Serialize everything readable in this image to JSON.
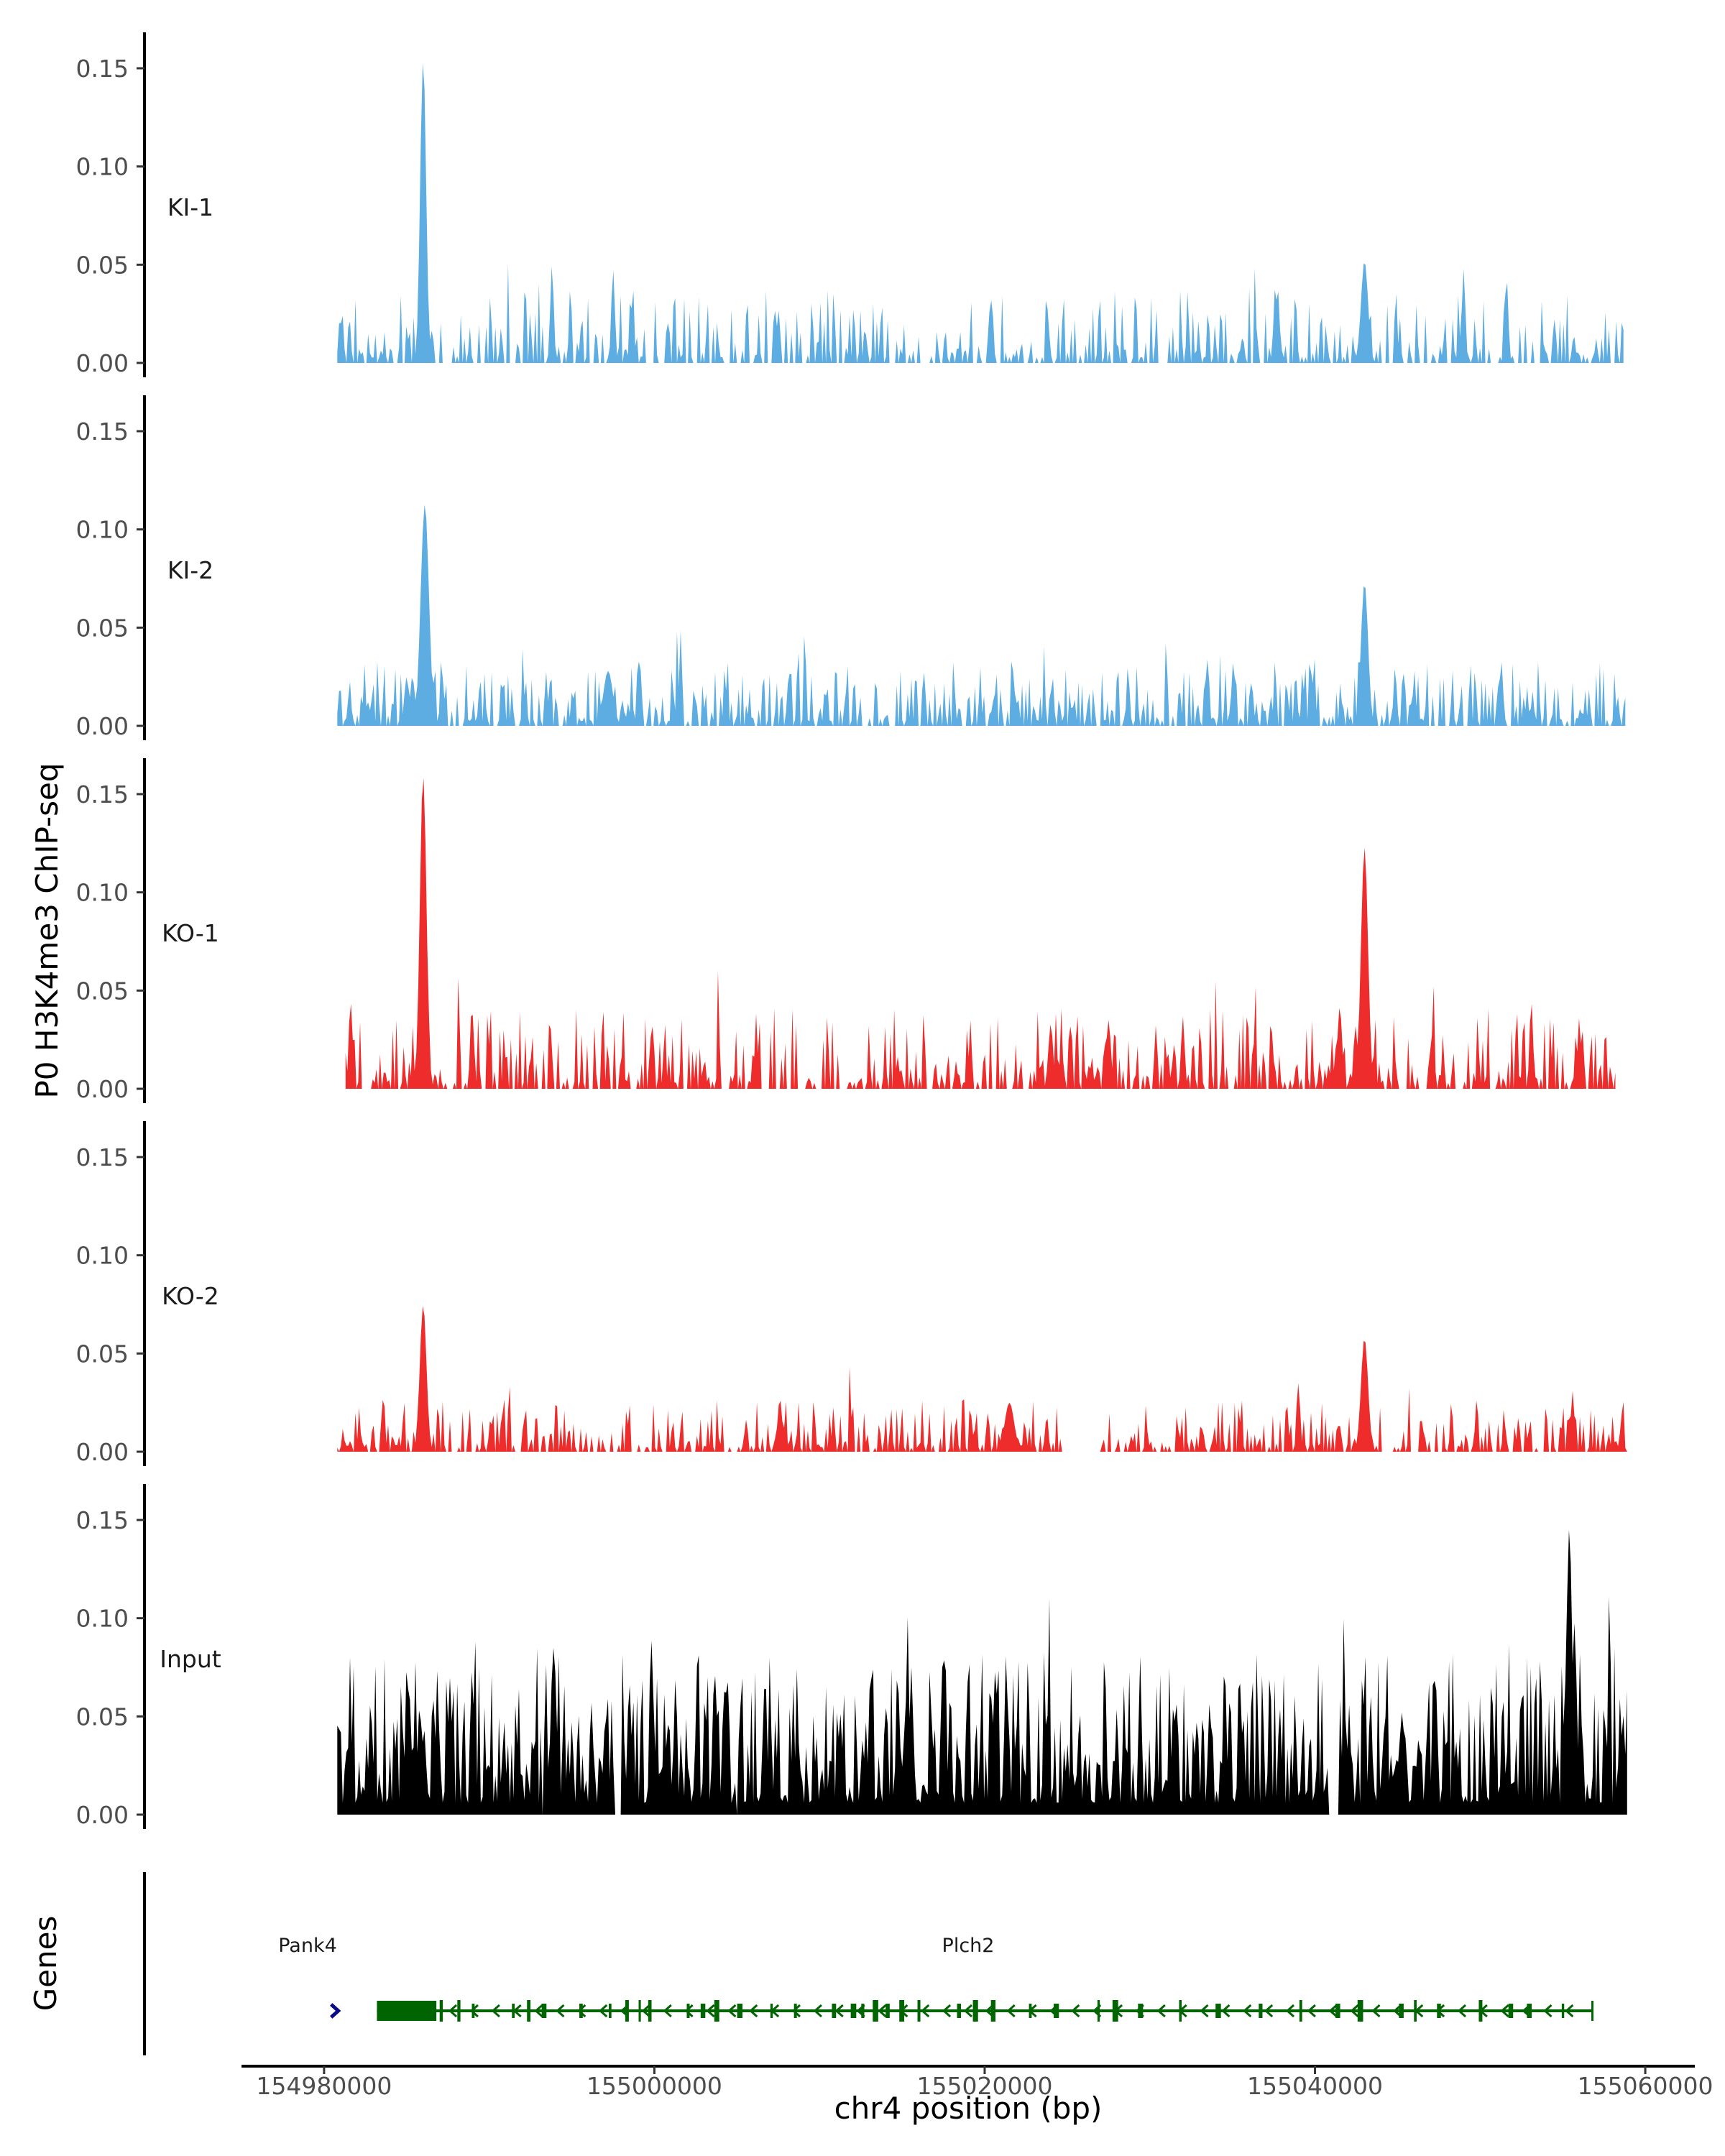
{
  "chart_data": {
    "type": "area",
    "title": "",
    "ylabel": "P0 H3K4me3 ChIP-seq",
    "xlabel": "chr4 position (bp)",
    "xlim": [
      154975000,
      155063000
    ],
    "ylim": [
      0,
      0.165
    ],
    "y_ticks": [
      "0.00",
      "0.05",
      "0.10",
      "0.15"
    ],
    "x_ticks": [
      {
        "value": 154980000,
        "label": "154980000"
      },
      {
        "value": 155000000,
        "label": "155000000"
      },
      {
        "value": 155020000,
        "label": "155020000"
      },
      {
        "value": 155040000,
        "label": "155040000"
      },
      {
        "value": 155060000,
        "label": "155060000"
      }
    ],
    "series": [
      {
        "name": "KI-1",
        "color": "#5DADE2",
        "data_start": 154980800,
        "data_end": 155058700,
        "seed": 11,
        "density": 0.55,
        "base": 0.018,
        "gaps": [],
        "peaks": [
          [
            154986000,
            0.155,
            250
          ],
          [
            155043000,
            0.052,
            300
          ],
          [
            155037600,
            0.04,
            150
          ],
          [
            155049000,
            0.048,
            150
          ],
          [
            155051600,
            0.044,
            150
          ],
          [
            154997500,
            0.048,
            150
          ],
          [
            154993800,
            0.05,
            150
          ]
        ]
      },
      {
        "name": "KI-2",
        "color": "#5DADE2",
        "data_start": 154980800,
        "data_end": 155058800,
        "seed": 23,
        "density": 0.72,
        "base": 0.016,
        "gaps": [],
        "peaks": [
          [
            154986100,
            0.113,
            350
          ],
          [
            155043000,
            0.073,
            300
          ],
          [
            154997200,
            0.028,
            400
          ],
          [
            154985000,
            0.025,
            200
          ]
        ]
      },
      {
        "name": "KO-1",
        "color": "#EE2C2C",
        "data_start": 154981300,
        "data_end": 155058200,
        "seed": 37,
        "density": 0.6,
        "base": 0.02,
        "gaps": [],
        "peaks": [
          [
            154986000,
            0.16,
            280
          ],
          [
            155043000,
            0.123,
            300
          ],
          [
            154981600,
            0.045,
            150
          ],
          [
            155024000,
            0.033,
            200
          ],
          [
            155027500,
            0.035,
            200
          ],
          [
            155032000,
            0.037,
            150
          ],
          [
            155041500,
            0.042,
            200
          ],
          [
            155053100,
            0.045,
            150
          ],
          [
            155056000,
            0.036,
            150
          ]
        ]
      },
      {
        "name": "KO-2",
        "color": "#EE2C2C",
        "data_start": 154980800,
        "data_end": 155059000,
        "seed": 53,
        "density": 0.62,
        "base": 0.013,
        "gaps": [
          [
            155024700,
            155027000
          ]
        ],
        "peaks": [
          [
            154986000,
            0.075,
            280
          ],
          [
            155043000,
            0.058,
            300
          ],
          [
            155039000,
            0.035,
            150
          ],
          [
            155021500,
            0.025,
            400
          ],
          [
            155055600,
            0.031,
            150
          ],
          [
            155007600,
            0.027,
            200
          ]
        ]
      },
      {
        "name": "Input",
        "color": "#000000",
        "data_start": 154980800,
        "data_end": 155059000,
        "seed": 71,
        "density": 1.0,
        "base": 0.04,
        "gaps": [
          [
            154993200,
            154993300
          ],
          [
            154997600,
            154998000
          ],
          [
            155004900,
            155005000
          ],
          [
            155040800,
            155041500
          ]
        ],
        "peaks": [
          [
            155055400,
            0.146,
            250
          ],
          [
            154993900,
            0.085,
            250
          ],
          [
            155021300,
            0.082,
            150
          ],
          [
            155003700,
            0.072,
            150
          ]
        ]
      }
    ],
    "genes_track": {
      "label": "Genes",
      "genes": [
        {
          "name": "Pank4",
          "start": 154980600,
          "end": 154981100,
          "strand": "+",
          "color": "#0A0A8C"
        },
        {
          "name": "Plch2",
          "start": 154983200,
          "end": 155056800,
          "strand": "-",
          "color": "#006400"
        }
      ]
    }
  }
}
